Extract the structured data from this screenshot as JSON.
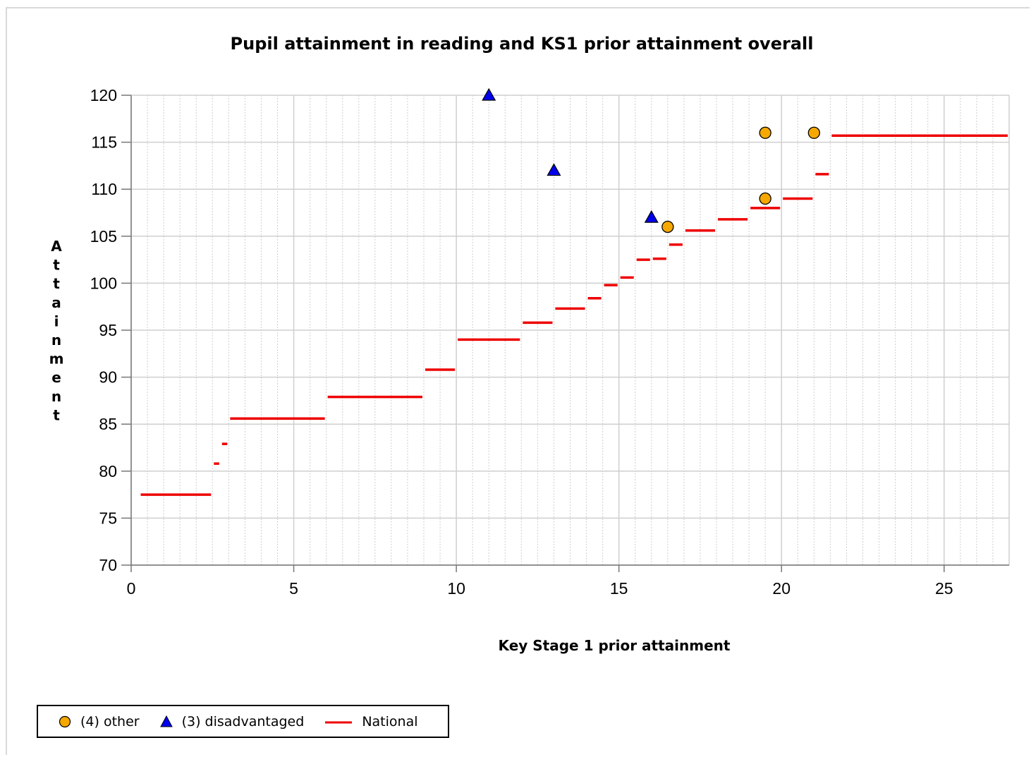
{
  "chart_data": {
    "type": "scatter",
    "title": "Pupil attainment in reading and KS1 prior attainment overall",
    "xlabel": "Key Stage 1 prior attainment",
    "ylabel": "Attainment",
    "xlim": [
      0,
      27
    ],
    "ylim": [
      70,
      120
    ],
    "xticks": [
      0,
      5,
      10,
      15,
      20,
      25
    ],
    "yticks": [
      70,
      75,
      80,
      85,
      90,
      95,
      100,
      105,
      110,
      115,
      120
    ],
    "grid": true,
    "legend_position": "bottom-left",
    "series": [
      {
        "name": "(4) other",
        "marker": "circle",
        "color": "#f5a800",
        "points": [
          {
            "x": 16.5,
            "y": 106
          },
          {
            "x": 19.5,
            "y": 109
          },
          {
            "x": 19.5,
            "y": 116
          },
          {
            "x": 21,
            "y": 116
          }
        ]
      },
      {
        "name": "(3) disadvantaged",
        "marker": "triangle",
        "color": "#0000ee",
        "points": [
          {
            "x": 11,
            "y": 120
          },
          {
            "x": 13,
            "y": 112
          },
          {
            "x": 16,
            "y": 107
          }
        ]
      },
      {
        "name": "National",
        "marker": "segment",
        "color": "#ee0000",
        "segments": [
          {
            "x0": 0.25,
            "x1": 2.5,
            "y": 77.5
          },
          {
            "x0": 2.5,
            "x1": 2.75,
            "y": 80.8
          },
          {
            "x0": 2.75,
            "x1": 3.0,
            "y": 82.9
          },
          {
            "x0": 3.0,
            "x1": 6.0,
            "y": 85.6
          },
          {
            "x0": 6.0,
            "x1": 9.0,
            "y": 87.9
          },
          {
            "x0": 9.0,
            "x1": 10.0,
            "y": 90.8
          },
          {
            "x0": 10.0,
            "x1": 12.0,
            "y": 94.0
          },
          {
            "x0": 12.0,
            "x1": 13.0,
            "y": 95.8
          },
          {
            "x0": 13.0,
            "x1": 14.0,
            "y": 97.3
          },
          {
            "x0": 14.0,
            "x1": 14.5,
            "y": 98.4
          },
          {
            "x0": 14.5,
            "x1": 15.0,
            "y": 99.8
          },
          {
            "x0": 15.0,
            "x1": 15.5,
            "y": 100.6
          },
          {
            "x0": 15.5,
            "x1": 16.0,
            "y": 102.5
          },
          {
            "x0": 16.0,
            "x1": 16.5,
            "y": 102.6
          },
          {
            "x0": 16.5,
            "x1": 17.0,
            "y": 104.1
          },
          {
            "x0": 17.0,
            "x1": 18.0,
            "y": 105.6
          },
          {
            "x0": 18.0,
            "x1": 19.0,
            "y": 106.8
          },
          {
            "x0": 19.0,
            "x1": 20.0,
            "y": 108.0
          },
          {
            "x0": 20.0,
            "x1": 21.0,
            "y": 109.0
          },
          {
            "x0": 21.0,
            "x1": 21.5,
            "y": 111.6
          },
          {
            "x0": 21.5,
            "x1": 27.0,
            "y": 115.7
          }
        ]
      }
    ]
  }
}
